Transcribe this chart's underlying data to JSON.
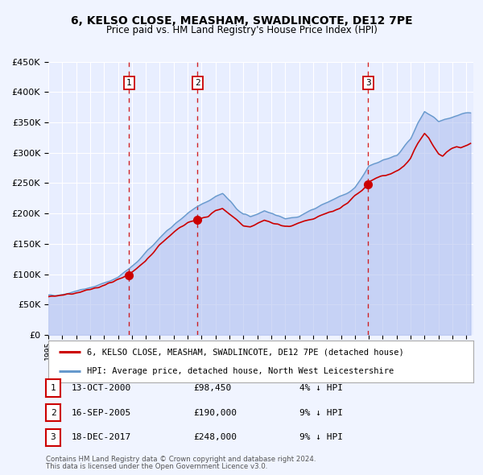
{
  "title": "6, KELSO CLOSE, MEASHAM, SWADLINCOTE, DE12 7PE",
  "subtitle": "Price paid vs. HM Land Registry's House Price Index (HPI)",
  "ylim": [
    0,
    450000
  ],
  "xlim_start": 1995.0,
  "xlim_end": 2025.5,
  "background_color": "#f0f4ff",
  "plot_bg_color": "#e8eeff",
  "grid_color": "#ffffff",
  "sale_color": "#cc0000",
  "hpi_color": "#6699cc",
  "hpi_fill_color": "#aabbee",
  "transactions": [
    {
      "date_num": 2000.79,
      "price": 98450,
      "label": "1"
    },
    {
      "date_num": 2005.71,
      "price": 190000,
      "label": "2"
    },
    {
      "date_num": 2017.96,
      "price": 248000,
      "label": "3"
    }
  ],
  "vline_dates": [
    2000.79,
    2005.71,
    2017.96
  ],
  "sale_line_label": "6, KELSO CLOSE, MEASHAM, SWADLINCOTE, DE12 7PE (detached house)",
  "hpi_line_label": "HPI: Average price, detached house, North West Leicestershire",
  "table_rows": [
    {
      "num": "1",
      "date": "13-OCT-2000",
      "price": "£98,450",
      "pct": "4% ↓ HPI"
    },
    {
      "num": "2",
      "date": "16-SEP-2005",
      "price": "£190,000",
      "pct": "9% ↓ HPI"
    },
    {
      "num": "3",
      "date": "18-DEC-2017",
      "price": "£248,000",
      "pct": "9% ↓ HPI"
    }
  ],
  "footer1": "Contains HM Land Registry data © Crown copyright and database right 2024.",
  "footer2": "This data is licensed under the Open Government Licence v3.0.",
  "hpi_anchors": [
    [
      1995.0,
      65000
    ],
    [
      1996.0,
      67000
    ],
    [
      1997.0,
      72000
    ],
    [
      1998.0,
      78000
    ],
    [
      1999.0,
      85000
    ],
    [
      2000.0,
      95000
    ],
    [
      2001.0,
      112000
    ],
    [
      2002.0,
      135000
    ],
    [
      2003.0,
      160000
    ],
    [
      2004.0,
      182000
    ],
    [
      2004.5,
      190000
    ],
    [
      2005.0,
      200000
    ],
    [
      2006.0,
      215000
    ],
    [
      2007.0,
      228000
    ],
    [
      2007.5,
      232000
    ],
    [
      2008.0,
      222000
    ],
    [
      2008.5,
      208000
    ],
    [
      2009.0,
      198000
    ],
    [
      2009.5,
      195000
    ],
    [
      2010.0,
      200000
    ],
    [
      2010.5,
      205000
    ],
    [
      2011.0,
      200000
    ],
    [
      2012.0,
      192000
    ],
    [
      2013.0,
      196000
    ],
    [
      2014.0,
      207000
    ],
    [
      2015.0,
      218000
    ],
    [
      2016.0,
      228000
    ],
    [
      2017.0,
      242000
    ],
    [
      2018.0,
      278000
    ],
    [
      2019.0,
      288000
    ],
    [
      2020.0,
      296000
    ],
    [
      2021.0,
      322000
    ],
    [
      2021.5,
      348000
    ],
    [
      2022.0,
      368000
    ],
    [
      2022.5,
      360000
    ],
    [
      2023.0,
      352000
    ],
    [
      2023.5,
      355000
    ],
    [
      2024.0,
      358000
    ],
    [
      2024.5,
      362000
    ],
    [
      2025.3,
      365000
    ]
  ],
  "sale_anchors": [
    [
      1995.0,
      63000
    ],
    [
      1996.0,
      65000
    ],
    [
      1997.0,
      69000
    ],
    [
      1998.0,
      75000
    ],
    [
      1999.0,
      82000
    ],
    [
      2000.0,
      91000
    ],
    [
      2000.79,
      98450
    ],
    [
      2001.0,
      103000
    ],
    [
      2002.0,
      122000
    ],
    [
      2003.0,
      148000
    ],
    [
      2004.0,
      170000
    ],
    [
      2004.5,
      178000
    ],
    [
      2005.0,
      185000
    ],
    [
      2005.71,
      190000
    ],
    [
      2006.0,
      192000
    ],
    [
      2006.5,
      195000
    ],
    [
      2007.0,
      205000
    ],
    [
      2007.5,
      208000
    ],
    [
      2008.0,
      200000
    ],
    [
      2008.5,
      190000
    ],
    [
      2009.0,
      180000
    ],
    [
      2009.5,
      177000
    ],
    [
      2010.0,
      183000
    ],
    [
      2010.5,
      188000
    ],
    [
      2011.0,
      185000
    ],
    [
      2011.5,
      182000
    ],
    [
      2012.0,
      178000
    ],
    [
      2012.5,
      180000
    ],
    [
      2013.0,
      184000
    ],
    [
      2013.5,
      188000
    ],
    [
      2014.0,
      192000
    ],
    [
      2014.5,
      196000
    ],
    [
      2015.0,
      200000
    ],
    [
      2015.5,
      205000
    ],
    [
      2016.0,
      210000
    ],
    [
      2016.5,
      218000
    ],
    [
      2017.0,
      230000
    ],
    [
      2017.5,
      238000
    ],
    [
      2017.96,
      248000
    ],
    [
      2018.0,
      252000
    ],
    [
      2018.5,
      258000
    ],
    [
      2019.0,
      262000
    ],
    [
      2019.5,
      265000
    ],
    [
      2020.0,
      270000
    ],
    [
      2020.5,
      278000
    ],
    [
      2021.0,
      292000
    ],
    [
      2021.5,
      315000
    ],
    [
      2022.0,
      332000
    ],
    [
      2022.3,
      325000
    ],
    [
      2022.6,
      312000
    ],
    [
      2023.0,
      298000
    ],
    [
      2023.3,
      295000
    ],
    [
      2023.6,
      302000
    ],
    [
      2024.0,
      308000
    ],
    [
      2024.3,
      310000
    ],
    [
      2024.6,
      308000
    ],
    [
      2025.0,
      312000
    ],
    [
      2025.3,
      315000
    ]
  ]
}
